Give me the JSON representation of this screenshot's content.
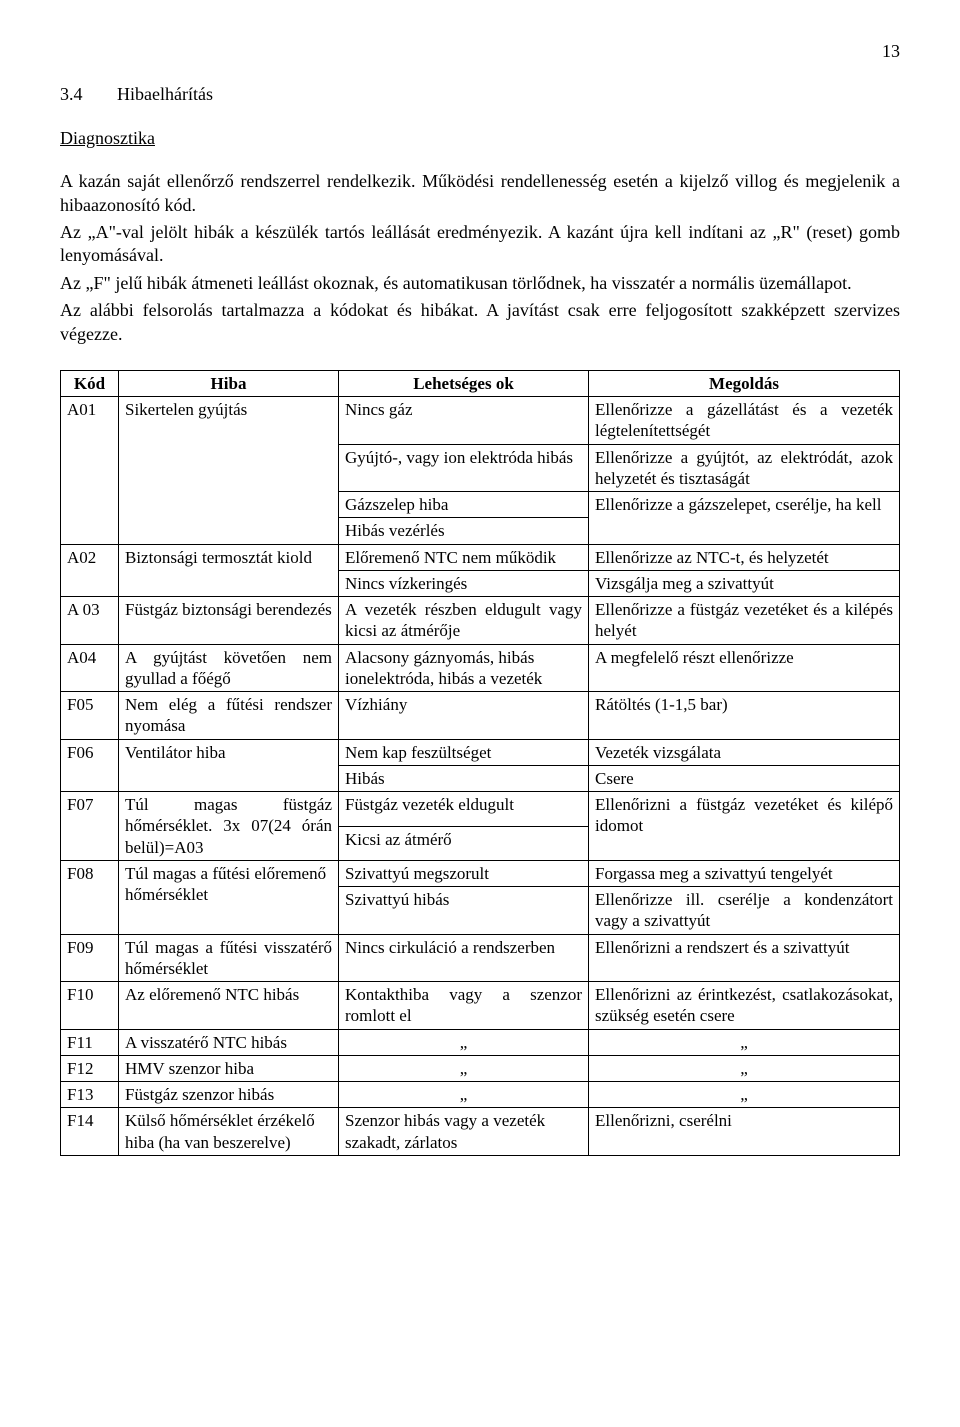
{
  "page_number": "13",
  "section": {
    "number": "3.4",
    "title": "Hibaelhárítás"
  },
  "subheading": "Diagnosztika",
  "paragraphs": {
    "p1": "A kazán saját ellenőrző rendszerrel rendelkezik. Működési rendellenesség esetén a kijelző villog és megjelenik a hibaazonosító kód.",
    "p2": "Az „A\"-val jelölt hibák a készülék tartós leállását eredményezik. A kazánt újra kell indítani az „R\" (reset) gomb lenyomásával.",
    "p3": "Az „F\" jelű hibák átmeneti leállást okoznak, és automatikusan törlődnek, ha visszatér a normális üzemállapot.",
    "p4": "Az alábbi felsorolás tartalmazza a kódokat és hibákat. A javítást csak erre feljogosított szakképzett szervizes végezze."
  },
  "table": {
    "headers": {
      "kod": "Kód",
      "hiba": "Hiba",
      "ok": "Lehetséges ok",
      "megoldas": "Megoldás"
    },
    "rows": {
      "a01": {
        "kod": "A01",
        "hiba": "Sikertelen gyújtás",
        "r1": {
          "ok": "Nincs gáz",
          "meg": "Ellenőrizze a gázellátást és a vezeték légtelenítettségét"
        },
        "r2": {
          "ok": "Gyújtó-, vagy ion elektróda hibás",
          "meg": "Ellenőrizze a gyújtót, az elektródát, azok helyzetét és tisztaságát"
        },
        "r3": {
          "ok": "Gázszelep hiba",
          "meg": "Ellenőrizze a gázszelepet,"
        },
        "r4": {
          "ok": "Hibás vezérlés",
          "meg": "cserélje, ha kell"
        }
      },
      "a02": {
        "kod": "A02",
        "hiba": "Biztonsági termosztát kiold",
        "r1": {
          "ok": "Előremenő NTC nem működik",
          "meg": "Ellenőrizze az NTC-t, és helyzetét"
        },
        "r2": {
          "ok": "Nincs vízkeringés",
          "meg": "Vizsgálja meg a szivattyút"
        }
      },
      "a03": {
        "kod": "A 03",
        "hiba": "Füstgáz biztonsági berendezés",
        "ok": "A vezeték részben eldugult vagy kicsi az átmérője",
        "meg": "Ellenőrizze a füstgáz vezetéket és a kilépés helyét"
      },
      "a04": {
        "kod": "A04",
        "hiba": "A gyújtást követően nem gyullad a főégő",
        "ok": "Alacsony gáznyomás, hibás ionelektróda, hibás a vezeték",
        "meg": "A megfelelő részt ellenőrizze"
      },
      "f05": {
        "kod": "F05",
        "hiba": "Nem elég a fűtési rendszer nyomása",
        "ok": "Vízhiány",
        "meg": "Rátöltés (1-1,5 bar)"
      },
      "f06": {
        "kod": "F06",
        "hiba": "Ventilátor hiba",
        "r1": {
          "ok": "Nem kap feszültséget",
          "meg": "Vezeték vizsgálata"
        },
        "r2": {
          "ok": "Hibás",
          "meg": "Csere"
        }
      },
      "f07": {
        "kod": "F07",
        "hiba": "Túl magas füstgáz hőmérséklet. 3x 07(24 órán belül)=A03",
        "r1": {
          "ok": "Füstgáz vezeték eldugult",
          "meg": "Ellenőrizni a füstgáz vezetéket és kilépő idomot"
        },
        "r2": {
          "ok": "Kicsi az átmérő"
        }
      },
      "f08": {
        "kod": "F08",
        "hiba": "Túl magas a fűtési előremenő hőmérséklet",
        "r1": {
          "ok": "Szivattyú megszorult",
          "meg": "Forgassa meg a szivattyú tengelyét"
        },
        "r2": {
          "ok": "Szivattyú hibás",
          "meg": "Ellenőrizze ill. cserélje a kondenzátort vagy a szivattyút"
        }
      },
      "f09": {
        "kod": "F09",
        "hiba": "Túl magas a fűtési visszatérő hőmérséklet",
        "ok": "Nincs cirkuláció a rendszerben",
        "meg": "Ellenőrizni a rendszert és a szivattyút"
      },
      "f10": {
        "kod": "F10",
        "hiba": "Az előremenő NTC hibás",
        "ok": "Kontakthiba vagy a szenzor romlott el",
        "meg": "Ellenőrizni az érintkezést, csatlakozásokat, szükség esetén csere"
      },
      "f11": {
        "kod": "F11",
        "hiba": "A visszatérő NTC hibás",
        "ok": "„",
        "meg": "„"
      },
      "f12": {
        "kod": "F12",
        "hiba": "HMV szenzor hiba",
        "ok": "„",
        "meg": "„"
      },
      "f13": {
        "kod": "F13",
        "hiba": "Füstgáz szenzor hibás",
        "ok": "„",
        "meg": "„"
      },
      "f14": {
        "kod": "F14",
        "hiba": "Külső hőmérséklet érzékelő hiba (ha van beszerelve)",
        "ok": "Szenzor hibás vagy a vezeték szakadt, zárlatos",
        "meg": "Ellenőrizni, cserélni"
      }
    }
  }
}
